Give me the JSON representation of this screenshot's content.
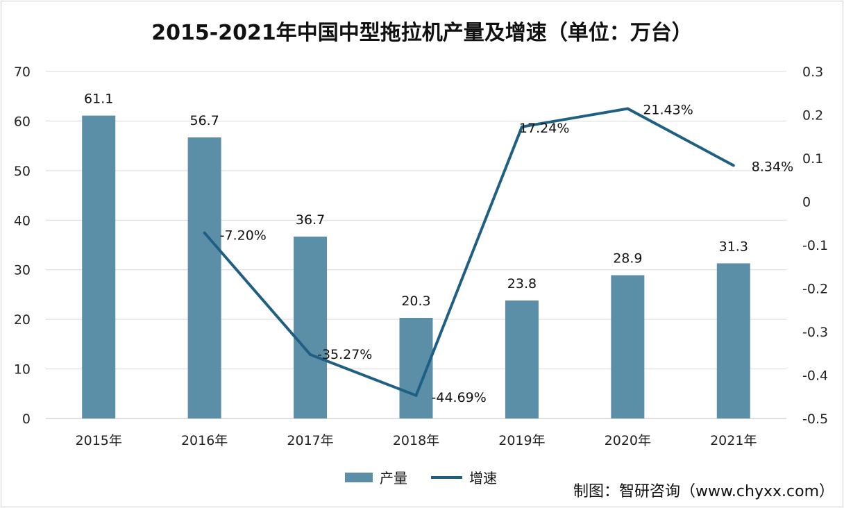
{
  "chart_data": {
    "type": "bar+line",
    "title": "2015-2021年中国中型拖拉机产量及增速（单位：万台）",
    "categories": [
      "2015年",
      "2016年",
      "2017年",
      "2018年",
      "2019年",
      "2020年",
      "2021年"
    ],
    "series": [
      {
        "name": "产量",
        "type": "bar",
        "axis": "left",
        "color": "#5b8fa8",
        "values": [
          61.1,
          56.7,
          36.7,
          20.3,
          23.8,
          28.9,
          31.3
        ],
        "labels": [
          "61.1",
          "56.7",
          "36.7",
          "20.3",
          "23.8",
          "28.9",
          "31.3"
        ]
      },
      {
        "name": "增速",
        "type": "line",
        "axis": "right",
        "color": "#1f5f84",
        "values": [
          null,
          -0.072,
          -0.3527,
          -0.4469,
          0.1724,
          0.2143,
          0.0834
        ],
        "labels": [
          "",
          "-7.20%",
          "-35.27%",
          "-44.69%",
          "17.24%",
          "21.43%",
          "8.34%"
        ]
      }
    ],
    "y_left": {
      "min": 0,
      "max": 70,
      "ticks": [
        "0",
        "10",
        "20",
        "30",
        "40",
        "50",
        "60",
        "70"
      ]
    },
    "y_right": {
      "min": -0.5,
      "max": 0.3,
      "ticks": [
        "-0.5",
        "-0.4",
        "-0.3",
        "-0.2",
        "-0.1",
        "0",
        "0.1",
        "0.2",
        "0.3"
      ]
    },
    "grid": true,
    "legend_position": "bottom"
  },
  "source": "制图：智研咨询（www.chyxx.com）"
}
